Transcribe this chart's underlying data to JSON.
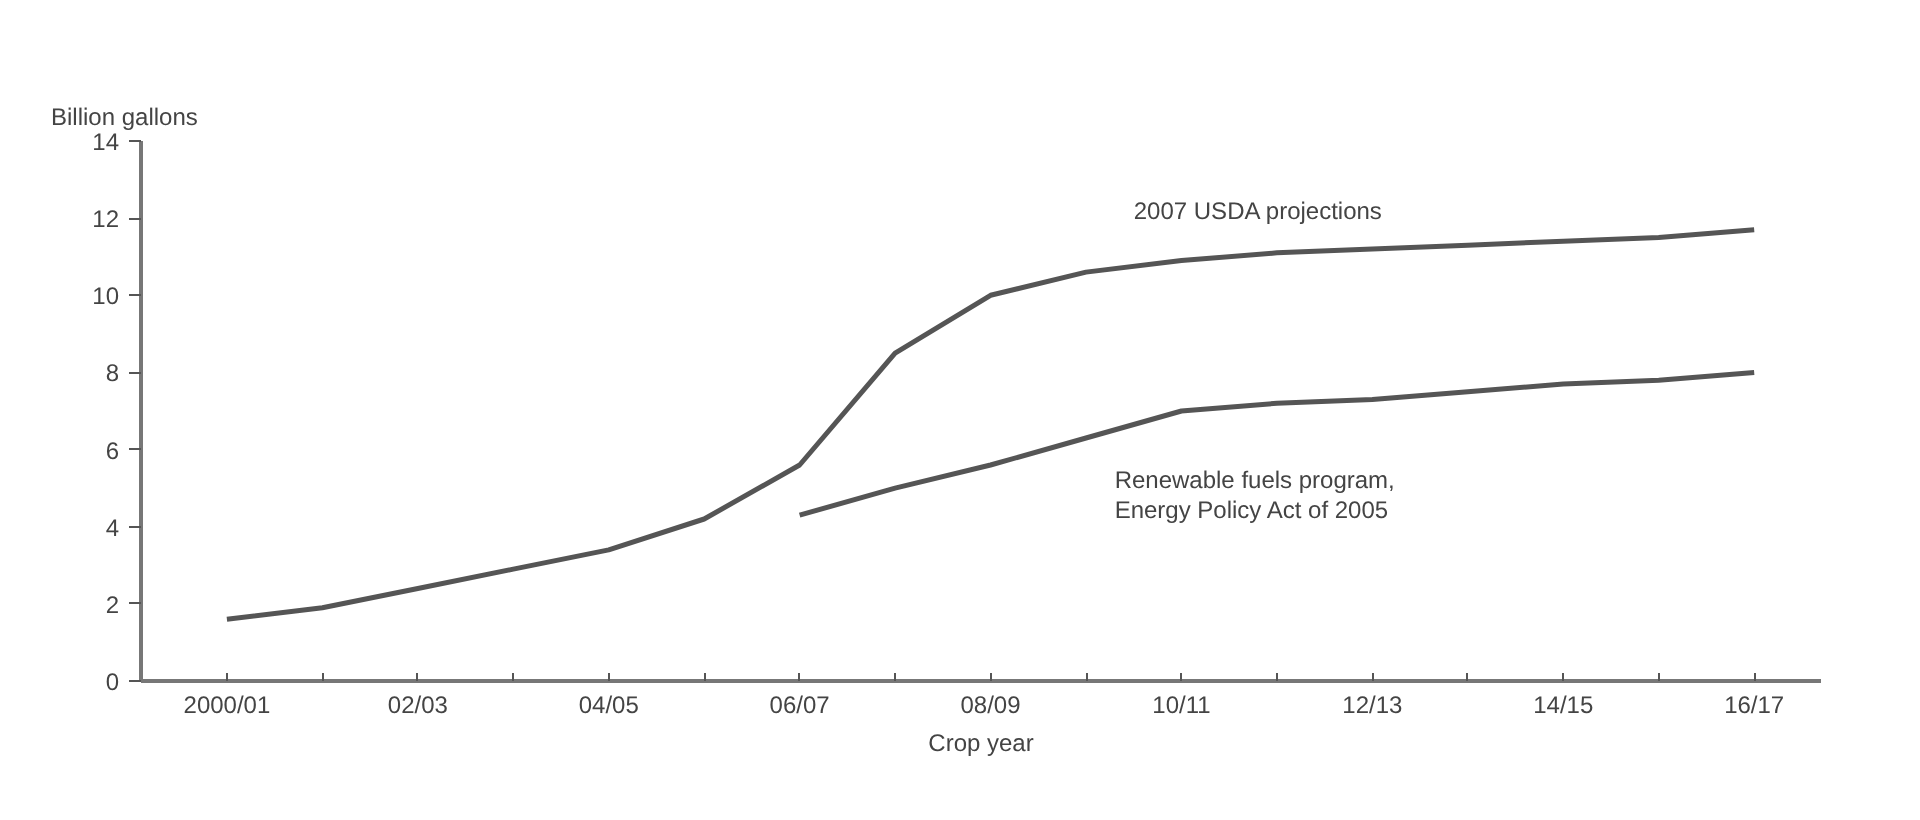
{
  "chart_data": {
    "type": "line",
    "ylabel": "Billion gallons",
    "xlabel": "Crop year",
    "categories": [
      "2000/01",
      null,
      "02/03",
      null,
      "04/05",
      null,
      "06/07",
      null,
      "08/09",
      null,
      "10/11",
      null,
      "12/13",
      null,
      "14/15",
      null,
      "16/17"
    ],
    "series": [
      {
        "name": "2007 USDA projections",
        "color": "#555555",
        "values": [
          1.6,
          1.9,
          2.4,
          2.9,
          3.4,
          4.2,
          5.6,
          8.5,
          10.0,
          10.6,
          10.9,
          11.1,
          11.2,
          11.3,
          11.4,
          11.5,
          11.7
        ]
      },
      {
        "name": "Renewable fuels program,\nEnergy Policy Act of 2005",
        "color": "#555555",
        "values": [
          null,
          null,
          null,
          null,
          null,
          null,
          4.3,
          5.0,
          5.6,
          6.3,
          7.0,
          7.2,
          7.3,
          7.5,
          7.7,
          7.8,
          8.0
        ]
      }
    ],
    "ylim": [
      0,
      14
    ],
    "yticks": [
      0,
      2,
      4,
      6,
      8,
      10,
      12,
      14
    ],
    "grid": false,
    "marker": "none",
    "line_style": "solid"
  }
}
